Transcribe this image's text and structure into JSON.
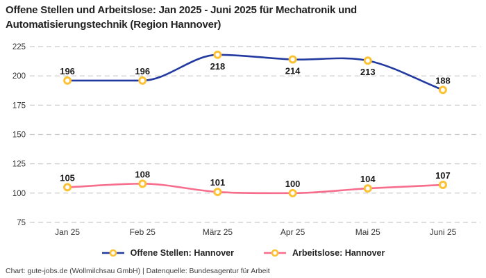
{
  "title": "Offene Stellen und Arbeitslose: Jan 2025 - Juni 2025 für Mechatronik und Automatisierungstechnik (Region Hannover)",
  "footer": "Chart: gute-jobs.de (Wollmilchsau GmbH) | Datenquelle: Bundesagentur für Arbeit",
  "colors": {
    "background": "#ffffff",
    "title_text": "#222222",
    "axis_text": "#333333",
    "gridline": "#c9c9c9",
    "marker_fill": "#ffffff",
    "marker_stroke": "#fcc233",
    "series_blue": "#2239a0",
    "series_pink": "#f76d8c"
  },
  "chart_data": {
    "type": "line",
    "title": "Offene Stellen und Arbeitslose: Jan 2025 - Juni 2025 für Mechatronik und Automatisierungstechnik (Region Hannover)",
    "categories": [
      "Jan 25",
      "Feb 25",
      "März 25",
      "Apr 25",
      "Mai 25",
      "Juni 25"
    ],
    "series": [
      {
        "name": "Offene Stellen: Hannover",
        "color": "#2239a0",
        "values": [
          196,
          196,
          218,
          214,
          213,
          188
        ],
        "label_positions": [
          "above",
          "above",
          "below",
          "below",
          "below",
          "above"
        ]
      },
      {
        "name": "Arbeitslose: Hannover",
        "color": "#f76d8c",
        "values": [
          105,
          108,
          101,
          100,
          104,
          107
        ],
        "label_positions": [
          "above",
          "above",
          "above",
          "above",
          "above",
          "above"
        ]
      }
    ],
    "xlabel": "",
    "ylabel": "",
    "ylim": [
      75,
      225
    ],
    "yticks": [
      75,
      100,
      125,
      150,
      175,
      200,
      225
    ],
    "grid": "horizontal-dashed",
    "line_style": "smooth-monotone",
    "marker": "gold-ring-white-fill",
    "legend_position": "bottom-center"
  }
}
